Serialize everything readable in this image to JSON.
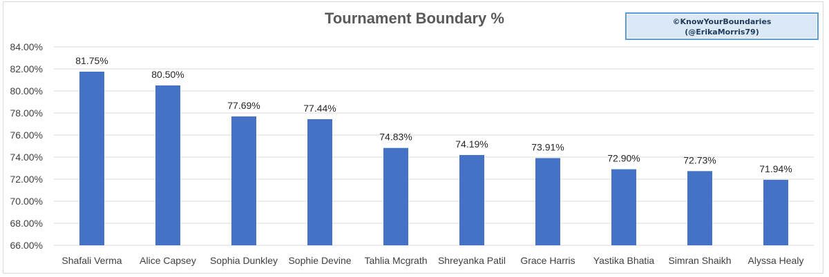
{
  "chart_data": {
    "type": "bar",
    "title": "Tournament Boundary %",
    "watermark": [
      "©KnowYourBoundaries",
      "(@ErikaMorris79)"
    ],
    "categories": [
      "Shafali Verma",
      "Alice Capsey",
      "Sophia Dunkley",
      "Sophie Devine",
      "Tahlia Mcgrath",
      "Shreyanka Patil",
      "Grace Harris",
      "Yastika Bhatia",
      "Simran Shaikh",
      "Alyssa Healy"
    ],
    "values": [
      81.75,
      80.5,
      77.69,
      77.44,
      74.83,
      74.19,
      73.91,
      72.9,
      72.73,
      71.94
    ],
    "data_labels": [
      "81.75%",
      "80.50%",
      "77.69%",
      "77.44%",
      "74.83%",
      "74.19%",
      "73.91%",
      "72.90%",
      "72.73%",
      "71.94%"
    ],
    "ylim": [
      66,
      84
    ],
    "yticks": [
      66,
      68,
      70,
      72,
      74,
      76,
      78,
      80,
      82,
      84
    ],
    "ytick_labels": [
      "66.00%",
      "68.00%",
      "70.00%",
      "72.00%",
      "74.00%",
      "76.00%",
      "78.00%",
      "80.00%",
      "82.00%",
      "84.00%"
    ],
    "xlabel": "",
    "ylabel": "",
    "grid": true,
    "legend": "none",
    "bar_color": "#4472c4",
    "grid_color": "#d9d9d9"
  }
}
